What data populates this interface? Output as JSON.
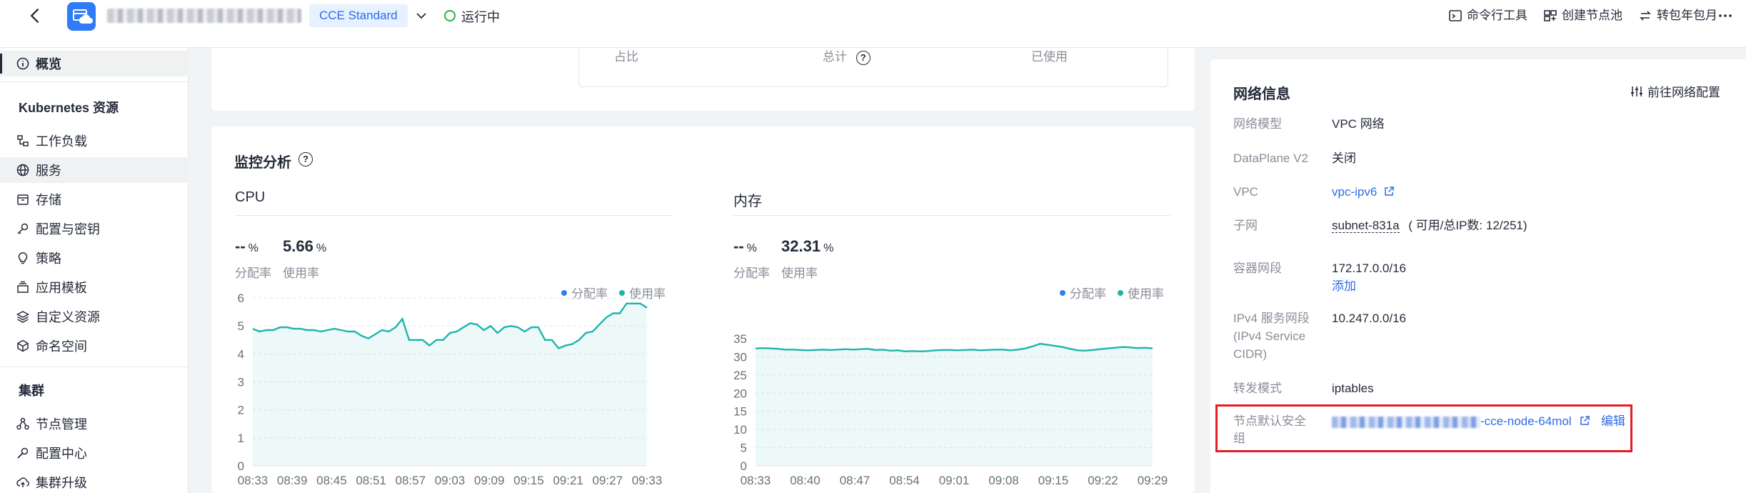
{
  "header": {
    "badge": "CCE Standard",
    "status": "运行中",
    "actions": [
      "命令行工具",
      "创建节点池",
      "转包年包月"
    ]
  },
  "sidebar": {
    "overview": "概览",
    "section_k8s": "Kubernetes 资源",
    "k8s_items": [
      "工作负载",
      "服务",
      "存储",
      "配置与密钥",
      "策略",
      "应用模板",
      "自定义资源",
      "命名空间"
    ],
    "section_cluster": "集群",
    "cluster_items": [
      "节点管理",
      "配置中心",
      "集群升级"
    ]
  },
  "top_card": {
    "col1": "占比",
    "col2": "总计",
    "col3": "已使用"
  },
  "monitor": {
    "title": "监控分析",
    "cpu": {
      "title": "CPU",
      "alloc_value": "--",
      "alloc_unit": "%",
      "usage_value": "5.66",
      "usage_unit": "%",
      "alloc_label": "分配率",
      "usage_label": "使用率"
    },
    "mem": {
      "title": "内存",
      "alloc_value": "--",
      "alloc_unit": "%",
      "usage_value": "32.31",
      "usage_unit": "%",
      "alloc_label": "分配率",
      "usage_label": "使用率"
    },
    "legend": [
      "分配率",
      "使用率"
    ],
    "colors": {
      "alloc": "#2e7cf6",
      "usage": "#1cb5ac"
    }
  },
  "chart_data": [
    {
      "type": "area",
      "title": "CPU",
      "x_ticks": [
        "08:33",
        "08:39",
        "08:45",
        "08:51",
        "08:57",
        "09:03",
        "09:09",
        "09:15",
        "09:21",
        "09:27",
        "09:33"
      ],
      "ylim": [
        0,
        6
      ],
      "y_ticks": [
        0,
        1,
        2,
        3,
        4,
        5,
        6
      ],
      "series": [
        {
          "name": "使用率",
          "values": [
            4.9,
            4.8,
            4.85,
            4.85,
            4.95,
            4.95,
            4.9,
            4.9,
            4.85,
            4.85,
            4.8,
            4.85,
            4.9,
            4.85,
            4.8,
            4.8,
            4.65,
            4.55,
            4.7,
            4.85,
            4.8,
            4.95,
            5.25,
            4.5,
            4.5,
            4.5,
            4.3,
            4.5,
            4.5,
            4.75,
            4.8,
            4.95,
            5.1,
            5.05,
            4.85,
            5.0,
            4.75,
            4.95,
            5.0,
            4.95,
            4.8,
            4.95,
            4.95,
            4.5,
            4.5,
            4.2,
            4.3,
            4.35,
            4.5,
            4.75,
            4.8,
            5.05,
            5.3,
            5.45,
            5.45,
            5.8,
            5.8,
            5.8,
            5.65
          ]
        }
      ]
    },
    {
      "type": "area",
      "title": "内存",
      "x_ticks": [
        "08:33",
        "08:40",
        "08:47",
        "08:54",
        "09:01",
        "09:08",
        "09:15",
        "09:22",
        "09:29"
      ],
      "ylim": [
        0,
        35
      ],
      "y_ticks": [
        0,
        5,
        10,
        15,
        20,
        25,
        30,
        35
      ],
      "series": [
        {
          "name": "使用率",
          "values": [
            32.3,
            32.4,
            32.3,
            32.2,
            32.0,
            32.0,
            31.9,
            31.8,
            31.9,
            32.0,
            31.9,
            32.0,
            32.1,
            32.0,
            32.1,
            32.2,
            31.9,
            32.0,
            31.7,
            31.8,
            31.5,
            31.6,
            31.5,
            31.6,
            31.8,
            31.9,
            31.9,
            31.8,
            31.9,
            32.0,
            31.8,
            31.9,
            32.0,
            32.0,
            31.8,
            32.0,
            32.3,
            32.9,
            33.6,
            33.3,
            33.0,
            32.7,
            32.2,
            31.8,
            31.7,
            31.9,
            32.1,
            32.3,
            32.5,
            32.7,
            32.6,
            32.4,
            32.5,
            32.3
          ]
        }
      ]
    }
  ],
  "network": {
    "title": "网络信息",
    "goto": "前往网络配置",
    "rows": {
      "model_label": "网络模型",
      "model_value": "VPC 网络",
      "dp_label": "DataPlane V2",
      "dp_value": "关闭",
      "vpc_label": "VPC",
      "vpc_value": "vpc-ipv6",
      "subnet_label": "子网",
      "subnet_value": "subnet-831a",
      "subnet_extra": "( 可用/总IP数:  12/251)",
      "cidr_label": "容器网段",
      "cidr_value": "172.17.0.0/16",
      "cidr_add": "添加",
      "svc_label_1": "IPv4 服务网段",
      "svc_label_2": "(IPv4 Service",
      "svc_label_3": "CIDR)",
      "svc_value": "10.247.0.0/16",
      "fwd_label": "转发模式",
      "fwd_value": "iptables",
      "sg_label_1": "节点默认安全",
      "sg_label_2": "组",
      "sg_value_suffix": "-cce-node-64mol",
      "sg_edit": "编辑"
    }
  }
}
